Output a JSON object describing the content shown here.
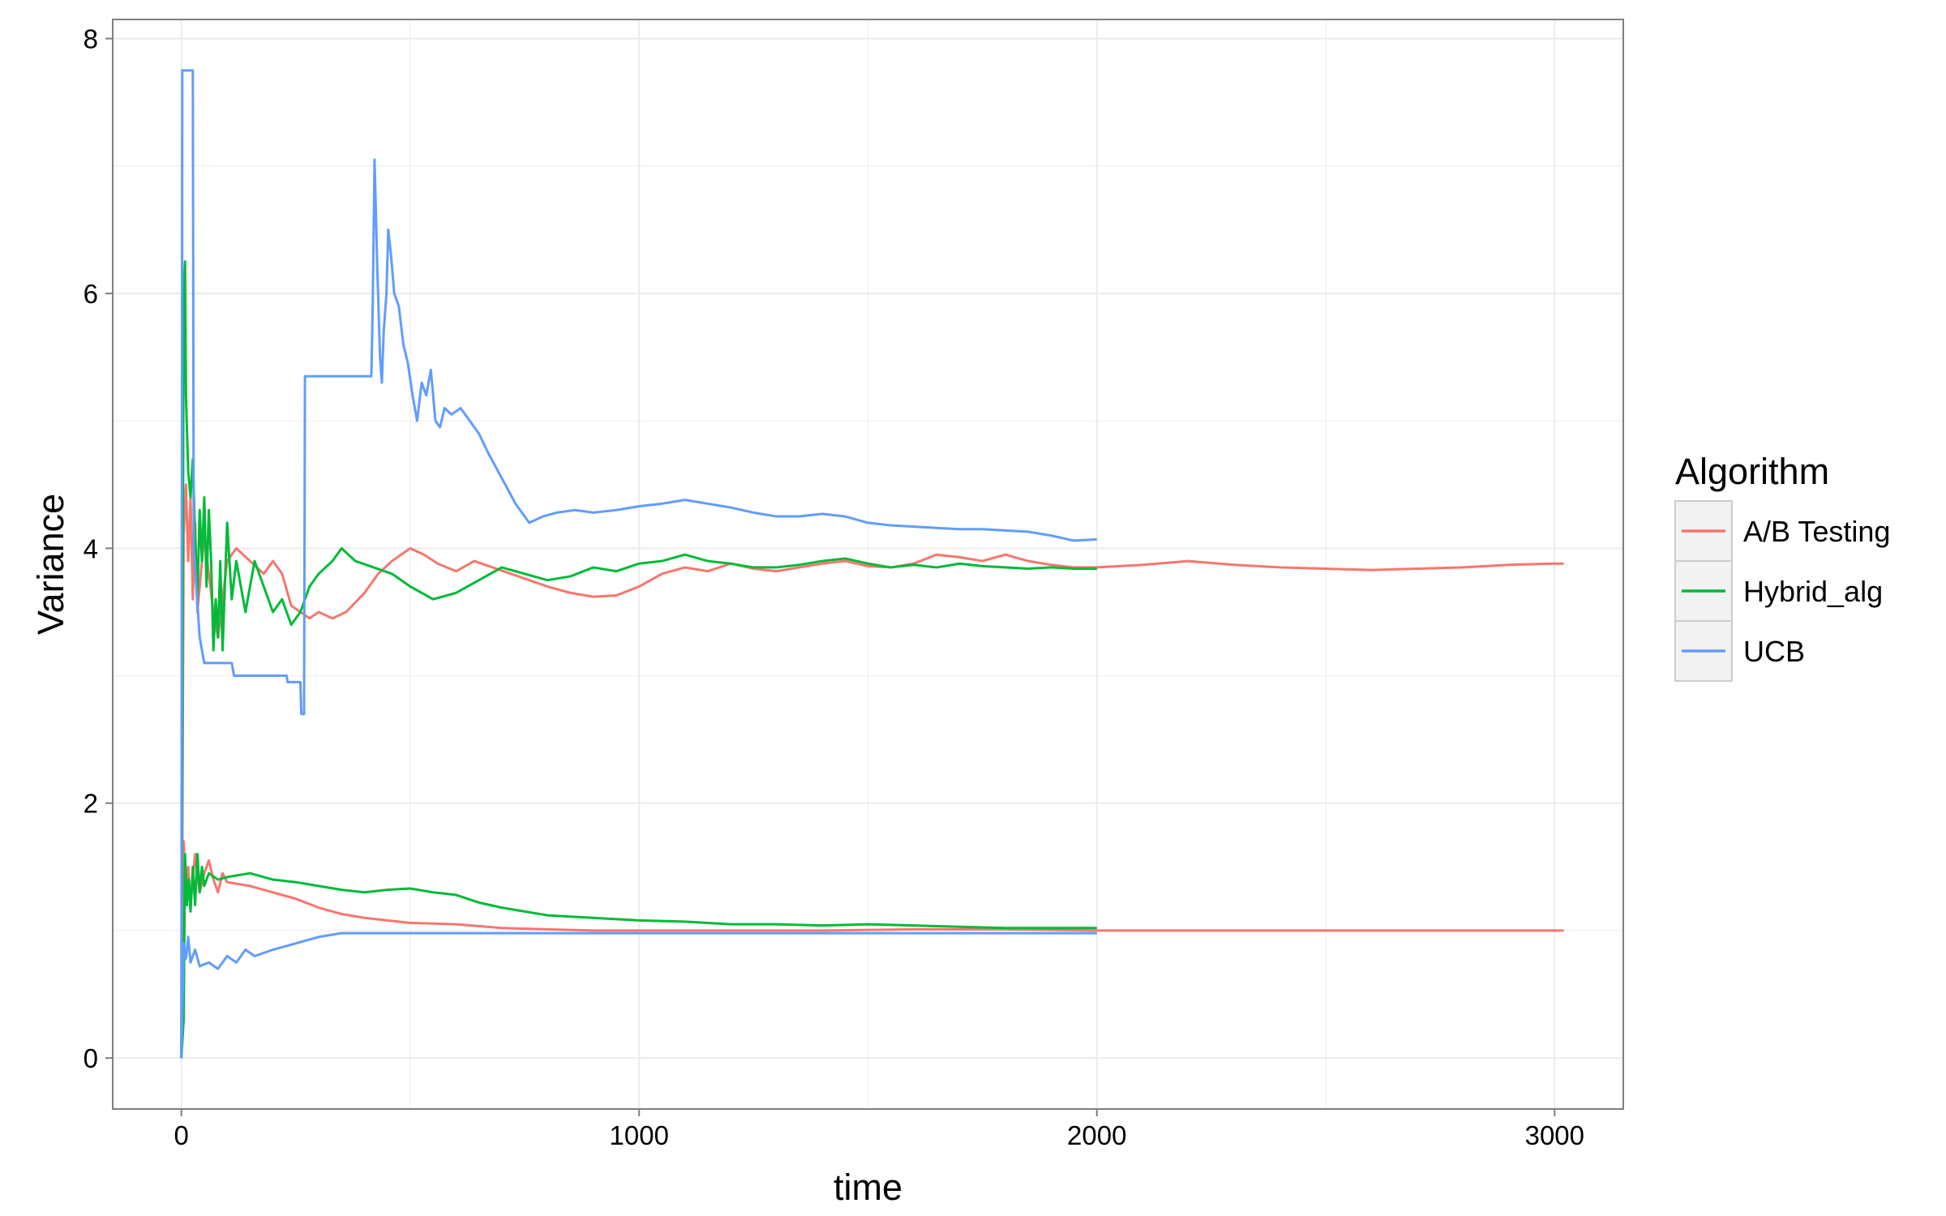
{
  "chart_data": {
    "type": "line",
    "title": "",
    "xlabel": "time",
    "ylabel": "Variance",
    "xlim": [
      -150,
      3150
    ],
    "ylim": [
      -0.4,
      8.15
    ],
    "x_ticks": [
      0,
      1000,
      2000,
      3000
    ],
    "x_tick_labels": [
      "0",
      "1000",
      "2000",
      "3000"
    ],
    "y_ticks": [
      0,
      2,
      4,
      6,
      8
    ],
    "y_tick_labels": [
      "0",
      "2",
      "4",
      "6",
      "8"
    ],
    "grid": true,
    "legend": {
      "title": "Algorithm",
      "placement": "right",
      "entries": [
        {
          "label": "A/B Testing",
          "color": "#F8766D"
        },
        {
          "label": "Hybrid_alg",
          "color": "#00BA38"
        },
        {
          "label": "UCB",
          "color": "#619CFF"
        }
      ]
    },
    "series": [
      {
        "name": "A/B Testing",
        "group": "upper",
        "color": "#F8766D",
        "points": [
          [
            0,
            0
          ],
          [
            5,
            4.1
          ],
          [
            10,
            4.5
          ],
          [
            15,
            3.9
          ],
          [
            20,
            4.4
          ],
          [
            25,
            3.6
          ],
          [
            30,
            4.2
          ],
          [
            35,
            3.5
          ],
          [
            40,
            3.7
          ],
          [
            50,
            4.1
          ],
          [
            60,
            3.8
          ],
          [
            70,
            3.5
          ],
          [
            80,
            3.3
          ],
          [
            90,
            3.6
          ],
          [
            100,
            3.9
          ],
          [
            120,
            4.0
          ],
          [
            150,
            3.9
          ],
          [
            180,
            3.8
          ],
          [
            200,
            3.9
          ],
          [
            220,
            3.8
          ],
          [
            240,
            3.55
          ],
          [
            260,
            3.5
          ],
          [
            280,
            3.45
          ],
          [
            300,
            3.5
          ],
          [
            330,
            3.45
          ],
          [
            360,
            3.5
          ],
          [
            400,
            3.65
          ],
          [
            430,
            3.8
          ],
          [
            460,
            3.9
          ],
          [
            500,
            4.0
          ],
          [
            530,
            3.95
          ],
          [
            560,
            3.88
          ],
          [
            600,
            3.82
          ],
          [
            640,
            3.9
          ],
          [
            680,
            3.85
          ],
          [
            720,
            3.8
          ],
          [
            760,
            3.75
          ],
          [
            800,
            3.7
          ],
          [
            850,
            3.65
          ],
          [
            900,
            3.62
          ],
          [
            950,
            3.63
          ],
          [
            1000,
            3.7
          ],
          [
            1050,
            3.8
          ],
          [
            1100,
            3.85
          ],
          [
            1150,
            3.82
          ],
          [
            1200,
            3.88
          ],
          [
            1250,
            3.84
          ],
          [
            1300,
            3.82
          ],
          [
            1350,
            3.85
          ],
          [
            1400,
            3.88
          ],
          [
            1450,
            3.9
          ],
          [
            1500,
            3.86
          ],
          [
            1550,
            3.85
          ],
          [
            1600,
            3.88
          ],
          [
            1650,
            3.95
          ],
          [
            1700,
            3.93
          ],
          [
            1750,
            3.9
          ],
          [
            1800,
            3.95
          ],
          [
            1850,
            3.9
          ],
          [
            1900,
            3.87
          ],
          [
            1950,
            3.85
          ],
          [
            2000,
            3.85
          ],
          [
            2100,
            3.87
          ],
          [
            2200,
            3.9
          ],
          [
            2300,
            3.87
          ],
          [
            2400,
            3.85
          ],
          [
            2500,
            3.84
          ],
          [
            2600,
            3.83
          ],
          [
            2700,
            3.84
          ],
          [
            2800,
            3.85
          ],
          [
            2900,
            3.87
          ],
          [
            3000,
            3.88
          ],
          [
            3020,
            3.88
          ]
        ]
      },
      {
        "name": "A/B Testing",
        "group": "lower",
        "color": "#F8766D",
        "points": [
          [
            0,
            0
          ],
          [
            5,
            1.7
          ],
          [
            10,
            1.3
          ],
          [
            15,
            1.5
          ],
          [
            20,
            1.2
          ],
          [
            30,
            1.6
          ],
          [
            40,
            1.3
          ],
          [
            50,
            1.45
          ],
          [
            60,
            1.55
          ],
          [
            70,
            1.4
          ],
          [
            80,
            1.3
          ],
          [
            90,
            1.45
          ],
          [
            100,
            1.38
          ],
          [
            150,
            1.35
          ],
          [
            200,
            1.3
          ],
          [
            250,
            1.25
          ],
          [
            300,
            1.18
          ],
          [
            350,
            1.13
          ],
          [
            400,
            1.1
          ],
          [
            450,
            1.08
          ],
          [
            500,
            1.06
          ],
          [
            600,
            1.05
          ],
          [
            700,
            1.02
          ],
          [
            800,
            1.01
          ],
          [
            900,
            1.0
          ],
          [
            1000,
            1.0
          ],
          [
            1200,
            1.0
          ],
          [
            1400,
            1.0
          ],
          [
            1600,
            1.01
          ],
          [
            1800,
            1.01
          ],
          [
            2000,
            1.0
          ],
          [
            2500,
            1.0
          ],
          [
            3000,
            1.0
          ],
          [
            3020,
            1.0
          ]
        ]
      },
      {
        "name": "Hybrid_alg",
        "group": "upper",
        "color": "#00BA38",
        "points": [
          [
            0,
            0
          ],
          [
            5,
            6.0
          ],
          [
            8,
            6.25
          ],
          [
            10,
            5.2
          ],
          [
            15,
            4.6
          ],
          [
            20,
            4.4
          ],
          [
            25,
            4.7
          ],
          [
            30,
            4.1
          ],
          [
            35,
            3.6
          ],
          [
            40,
            4.3
          ],
          [
            45,
            3.9
          ],
          [
            50,
            4.4
          ],
          [
            55,
            3.7
          ],
          [
            60,
            4.3
          ],
          [
            65,
            3.9
          ],
          [
            70,
            3.2
          ],
          [
            75,
            3.6
          ],
          [
            80,
            3.3
          ],
          [
            85,
            3.9
          ],
          [
            90,
            3.2
          ],
          [
            100,
            4.2
          ],
          [
            110,
            3.6
          ],
          [
            120,
            3.9
          ],
          [
            140,
            3.5
          ],
          [
            160,
            3.9
          ],
          [
            180,
            3.7
          ],
          [
            200,
            3.5
          ],
          [
            220,
            3.6
          ],
          [
            240,
            3.4
          ],
          [
            260,
            3.5
          ],
          [
            280,
            3.7
          ],
          [
            300,
            3.8
          ],
          [
            330,
            3.9
          ],
          [
            350,
            4.0
          ],
          [
            380,
            3.9
          ],
          [
            420,
            3.85
          ],
          [
            460,
            3.8
          ],
          [
            500,
            3.7
          ],
          [
            550,
            3.6
          ],
          [
            600,
            3.65
          ],
          [
            650,
            3.75
          ],
          [
            700,
            3.85
          ],
          [
            750,
            3.8
          ],
          [
            800,
            3.75
          ],
          [
            850,
            3.78
          ],
          [
            900,
            3.85
          ],
          [
            950,
            3.82
          ],
          [
            1000,
            3.88
          ],
          [
            1050,
            3.9
          ],
          [
            1100,
            3.95
          ],
          [
            1150,
            3.9
          ],
          [
            1200,
            3.88
          ],
          [
            1250,
            3.85
          ],
          [
            1300,
            3.85
          ],
          [
            1350,
            3.87
          ],
          [
            1400,
            3.9
          ],
          [
            1450,
            3.92
          ],
          [
            1500,
            3.88
          ],
          [
            1550,
            3.85
          ],
          [
            1600,
            3.87
          ],
          [
            1650,
            3.85
          ],
          [
            1700,
            3.88
          ],
          [
            1750,
            3.86
          ],
          [
            1800,
            3.85
          ],
          [
            1850,
            3.84
          ],
          [
            1900,
            3.85
          ],
          [
            1950,
            3.84
          ],
          [
            2000,
            3.84
          ]
        ]
      },
      {
        "name": "Hybrid_alg",
        "group": "lower",
        "color": "#00BA38",
        "points": [
          [
            0,
            0
          ],
          [
            5,
            0.3
          ],
          [
            8,
            1.6
          ],
          [
            12,
            1.2
          ],
          [
            16,
            1.4
          ],
          [
            20,
            1.15
          ],
          [
            25,
            1.5
          ],
          [
            30,
            1.2
          ],
          [
            35,
            1.6
          ],
          [
            40,
            1.3
          ],
          [
            45,
            1.5
          ],
          [
            50,
            1.35
          ],
          [
            60,
            1.45
          ],
          [
            80,
            1.4
          ],
          [
            100,
            1.42
          ],
          [
            150,
            1.45
          ],
          [
            200,
            1.4
          ],
          [
            250,
            1.38
          ],
          [
            300,
            1.35
          ],
          [
            350,
            1.32
          ],
          [
            400,
            1.3
          ],
          [
            450,
            1.32
          ],
          [
            500,
            1.33
          ],
          [
            550,
            1.3
          ],
          [
            600,
            1.28
          ],
          [
            650,
            1.22
          ],
          [
            700,
            1.18
          ],
          [
            750,
            1.15
          ],
          [
            800,
            1.12
          ],
          [
            900,
            1.1
          ],
          [
            1000,
            1.08
          ],
          [
            1100,
            1.07
          ],
          [
            1200,
            1.05
          ],
          [
            1300,
            1.05
          ],
          [
            1400,
            1.04
          ],
          [
            1500,
            1.05
          ],
          [
            1600,
            1.04
          ],
          [
            1700,
            1.03
          ],
          [
            1800,
            1.02
          ],
          [
            1900,
            1.02
          ],
          [
            2000,
            1.02
          ]
        ]
      },
      {
        "name": "UCB",
        "group": "upper",
        "color": "#619CFF",
        "points": [
          [
            0,
            0
          ],
          [
            2,
            7.75
          ],
          [
            25,
            7.75
          ],
          [
            27,
            4.0
          ],
          [
            40,
            3.3
          ],
          [
            50,
            3.1
          ],
          [
            110,
            3.1
          ],
          [
            115,
            3.0
          ],
          [
            230,
            3.0
          ],
          [
            232,
            2.95
          ],
          [
            260,
            2.95
          ],
          [
            262,
            2.7
          ],
          [
            268,
            2.7
          ],
          [
            270,
            5.35
          ],
          [
            415,
            5.35
          ],
          [
            418,
            5.9
          ],
          [
            422,
            7.05
          ],
          [
            428,
            6.2
          ],
          [
            434,
            5.5
          ],
          [
            438,
            5.3
          ],
          [
            442,
            5.7
          ],
          [
            448,
            6.0
          ],
          [
            452,
            6.5
          ],
          [
            458,
            6.3
          ],
          [
            465,
            6.0
          ],
          [
            475,
            5.9
          ],
          [
            485,
            5.6
          ],
          [
            495,
            5.45
          ],
          [
            505,
            5.2
          ],
          [
            515,
            5.0
          ],
          [
            525,
            5.3
          ],
          [
            535,
            5.2
          ],
          [
            545,
            5.4
          ],
          [
            555,
            5.0
          ],
          [
            565,
            4.95
          ],
          [
            575,
            5.1
          ],
          [
            590,
            5.05
          ],
          [
            610,
            5.1
          ],
          [
            630,
            5.0
          ],
          [
            650,
            4.9
          ],
          [
            670,
            4.75
          ],
          [
            700,
            4.55
          ],
          [
            730,
            4.35
          ],
          [
            760,
            4.2
          ],
          [
            790,
            4.25
          ],
          [
            820,
            4.28
          ],
          [
            860,
            4.3
          ],
          [
            900,
            4.28
          ],
          [
            950,
            4.3
          ],
          [
            1000,
            4.33
          ],
          [
            1050,
            4.35
          ],
          [
            1100,
            4.38
          ],
          [
            1150,
            4.35
          ],
          [
            1200,
            4.32
          ],
          [
            1250,
            4.28
          ],
          [
            1300,
            4.25
          ],
          [
            1350,
            4.25
          ],
          [
            1400,
            4.27
          ],
          [
            1450,
            4.25
          ],
          [
            1500,
            4.2
          ],
          [
            1550,
            4.18
          ],
          [
            1600,
            4.17
          ],
          [
            1650,
            4.16
          ],
          [
            1700,
            4.15
          ],
          [
            1750,
            4.15
          ],
          [
            1800,
            4.14
          ],
          [
            1850,
            4.13
          ],
          [
            1900,
            4.1
          ],
          [
            1950,
            4.06
          ],
          [
            2000,
            4.07
          ]
        ]
      },
      {
        "name": "UCB",
        "group": "lower",
        "color": "#619CFF",
        "points": [
          [
            0,
            0
          ],
          [
            5,
            0.9
          ],
          [
            10,
            0.78
          ],
          [
            15,
            0.95
          ],
          [
            20,
            0.75
          ],
          [
            30,
            0.85
          ],
          [
            40,
            0.72
          ],
          [
            60,
            0.75
          ],
          [
            80,
            0.7
          ],
          [
            100,
            0.8
          ],
          [
            120,
            0.75
          ],
          [
            140,
            0.85
          ],
          [
            160,
            0.8
          ],
          [
            200,
            0.85
          ],
          [
            250,
            0.9
          ],
          [
            300,
            0.95
          ],
          [
            350,
            0.98
          ],
          [
            400,
            0.98
          ],
          [
            500,
            0.98
          ],
          [
            600,
            0.98
          ],
          [
            800,
            0.98
          ],
          [
            1000,
            0.98
          ],
          [
            1500,
            0.98
          ],
          [
            2000,
            0.98
          ]
        ]
      }
    ]
  }
}
